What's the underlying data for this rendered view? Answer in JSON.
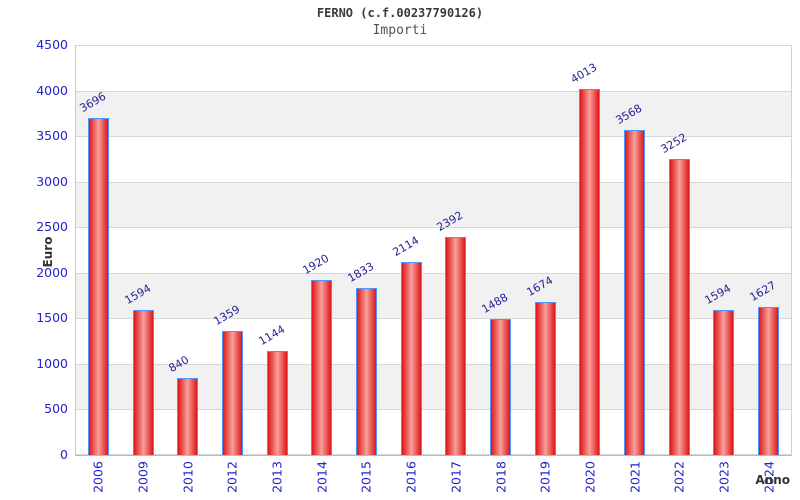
{
  "header": {
    "title": "FERNO (c.f.00237790126)",
    "subtitle": "Importi"
  },
  "chart_data": {
    "type": "bar",
    "title": "FERNO (c.f.00237790126)",
    "subtitle": "Importi",
    "xlabel": "Anno",
    "ylabel": "Euro",
    "categories": [
      "2006",
      "2009",
      "2010",
      "2012",
      "2013",
      "2014",
      "2015",
      "2016",
      "2017",
      "2018",
      "2019",
      "2020",
      "2021",
      "2022",
      "2023",
      "2024"
    ],
    "values": [
      3696,
      1594,
      840,
      1359,
      1144,
      1920,
      1833,
      2114,
      2392,
      1488,
      1674,
      4013,
      3568,
      3252,
      1594,
      1627
    ],
    "ylim": [
      0,
      4500
    ],
    "ytick_step": 500,
    "grid": "horizontal-bands",
    "legend": "none",
    "colors": {
      "bar_edge": "#dd1717",
      "bar_center": "#f8a09b",
      "bar_border": "#4d94ff",
      "tick_label": "#2323cc",
      "value_label": "#232394",
      "grid_line": "#d7d7d7",
      "band_alt": "#f1f1f1",
      "band_main": "#ffffff"
    }
  }
}
